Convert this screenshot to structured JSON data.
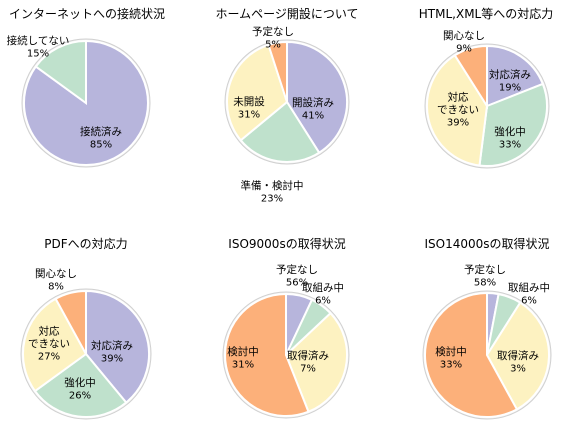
{
  "chart_data": [
    {
      "type": "pie",
      "title": "インターネットへの接続状況",
      "slices": [
        {
          "label": [
            "接続済み"
          ],
          "value": 85,
          "pct_text": "85%",
          "color": "#b7b5dc"
        },
        {
          "label": [
            "接続してない"
          ],
          "value": 15,
          "pct_text": "15%",
          "color": "#bfe1cc"
        }
      ]
    },
    {
      "type": "pie",
      "title": "ホームページ開設について",
      "slices": [
        {
          "label": [
            "開設済み"
          ],
          "value": 41,
          "pct_text": "41%",
          "color": "#b7b5dc"
        },
        {
          "label": [
            "準備・検討中"
          ],
          "value": 23,
          "pct_text": "23%",
          "color": "#bfe1cc"
        },
        {
          "label": [
            "未開設"
          ],
          "value": 31,
          "pct_text": "31%",
          "color": "#fdf2c1"
        },
        {
          "label": [
            "予定なし"
          ],
          "value": 5,
          "pct_text": "5%",
          "color": "#fcb07a"
        }
      ]
    },
    {
      "type": "pie",
      "title": "HTML,XML等への対応力",
      "slices": [
        {
          "label": [
            "対応済み"
          ],
          "value": 19,
          "pct_text": "19%",
          "color": "#b7b5dc"
        },
        {
          "label": [
            "強化中"
          ],
          "value": 33,
          "pct_text": "33%",
          "color": "#bfe1cc"
        },
        {
          "label": [
            "対応",
            "できない"
          ],
          "value": 39,
          "pct_text": "39%",
          "color": "#fdf2c1"
        },
        {
          "label": [
            "関心なし"
          ],
          "value": 9,
          "pct_text": "9%",
          "color": "#fcb07a"
        }
      ]
    },
    {
      "type": "pie",
      "title": "PDFへの対応力",
      "slices": [
        {
          "label": [
            "対応済み"
          ],
          "value": 39,
          "pct_text": "39%",
          "color": "#b7b5dc"
        },
        {
          "label": [
            "強化中"
          ],
          "value": 26,
          "pct_text": "26%",
          "color": "#bfe1cc"
        },
        {
          "label": [
            "対応",
            "できない"
          ],
          "value": 27,
          "pct_text": "27%",
          "color": "#fdf2c1"
        },
        {
          "label": [
            "関心なし"
          ],
          "value": 8,
          "pct_text": "8%",
          "color": "#fcb07a"
        }
      ]
    },
    {
      "type": "pie",
      "title": "ISO9000sの取得状況",
      "slices": [
        {
          "label": [
            "取得済み"
          ],
          "value": 7,
          "pct_text": "7%",
          "color": "#b7b5dc"
        },
        {
          "label": [
            "取組み中"
          ],
          "value": 6,
          "pct_text": "6%",
          "color": "#bfe1cc"
        },
        {
          "label": [
            "検討中"
          ],
          "value": 31,
          "pct_text": "31%",
          "color": "#fdf2c1"
        },
        {
          "label": [
            "予定なし"
          ],
          "value": 56,
          "pct_text": "56%",
          "color": "#fcb07a"
        }
      ]
    },
    {
      "type": "pie",
      "title": "ISO14000sの取得状況",
      "slices": [
        {
          "label": [
            "取得済み"
          ],
          "value": 3,
          "pct_text": "3%",
          "color": "#b7b5dc"
        },
        {
          "label": [
            "取組み中"
          ],
          "value": 6,
          "pct_text": "6%",
          "color": "#bfe1cc"
        },
        {
          "label": [
            "検討中"
          ],
          "value": 33,
          "pct_text": "33%",
          "color": "#fdf2c1"
        },
        {
          "label": [
            "予定なし"
          ],
          "value": 58,
          "pct_text": "58%",
          "color": "#fcb07a"
        }
      ]
    }
  ]
}
